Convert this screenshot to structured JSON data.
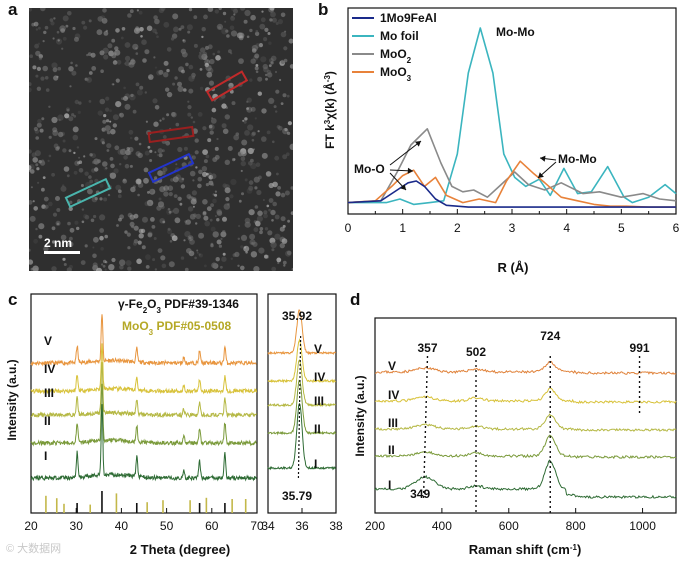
{
  "panels": {
    "a": "a",
    "b": "b",
    "c": "c",
    "d": "d"
  },
  "colors": {
    "b_1Mo9FeAl": "#1a2a8a",
    "b_mofoil": "#3bb5bf",
    "b_moo2": "#8a8a8a",
    "b_moo3": "#e8823a",
    "c_V": "#e8953e",
    "c_IV": "#d8c23a",
    "c_III": "#b5b844",
    "c_II": "#7a9a3a",
    "c_I": "#2e6b34",
    "c_ref_fe2o3": "#111111",
    "c_ref_moo3": "#c3b84a",
    "c_legend_moo3": "#b5a826",
    "d_V": "#e0823a",
    "d_IV": "#d8c23a",
    "d_III": "#b5b844",
    "d_II": "#7a9a3a",
    "d_I": "#2e6b34"
  },
  "panel_a": {
    "scale_label": "2 nm",
    "boxes": [
      {
        "color": "#c02a2a"
      },
      {
        "color": "#9a1f1f"
      },
      {
        "color": "#2233cc"
      },
      {
        "color": "#4ab5ad"
      }
    ]
  },
  "chart_data": [
    {
      "id": "b",
      "type": "line",
      "title": "",
      "xlabel": "R (Å)",
      "ylabel": "FT k3χ(k) (Å-3)",
      "xlim": [
        0,
        6
      ],
      "xticks": [
        "0",
        "1",
        "2",
        "3",
        "4",
        "5",
        "6"
      ],
      "legend": [
        "1Mo9FeAl",
        "Mo foil",
        "MoO2",
        "MoO3"
      ],
      "annotations": [
        "Mo-Mo",
        "Mo-O",
        "Mo-Mo"
      ],
      "series": [
        {
          "name": "1Mo9FeAl",
          "x": [
            0,
            0.6,
            0.9,
            1.1,
            1.25,
            1.4,
            1.6,
            1.8,
            2.2,
            3,
            4,
            5,
            6
          ],
          "y": [
            0.03,
            0.04,
            0.1,
            0.14,
            0.15,
            0.12,
            0.05,
            0.015,
            0.005,
            0.005,
            0.005,
            0.005,
            0.005
          ]
        },
        {
          "name": "Mo foil",
          "x": [
            0,
            0.7,
            0.95,
            1.2,
            1.5,
            1.75,
            2.0,
            2.2,
            2.42,
            2.65,
            2.85,
            3.05,
            3.25,
            3.5,
            3.7,
            3.95,
            4.2,
            4.45,
            4.75,
            5.05,
            5.2,
            5.5,
            5.8,
            6.0
          ],
          "y": [
            0.03,
            0.03,
            0.05,
            0.02,
            0.03,
            0.04,
            0.3,
            0.75,
            1.0,
            0.75,
            0.3,
            0.17,
            0.12,
            0.16,
            0.07,
            0.22,
            0.08,
            0.09,
            0.23,
            0.06,
            0.03,
            0.06,
            0.13,
            0.08
          ]
        },
        {
          "name": "MoO2",
          "x": [
            0,
            0.6,
            0.9,
            1.15,
            1.45,
            1.7,
            1.9,
            2.1,
            2.3,
            2.55,
            2.8,
            3.05,
            3.3,
            3.6,
            3.9,
            4.3,
            4.6,
            5.0,
            5.4,
            5.7,
            6.0
          ],
          "y": [
            0.03,
            0.04,
            0.2,
            0.35,
            0.44,
            0.25,
            0.12,
            0.09,
            0.1,
            0.06,
            0.13,
            0.2,
            0.13,
            0.1,
            0.14,
            0.08,
            0.09,
            0.06,
            0.08,
            0.05,
            0.04
          ]
        },
        {
          "name": "MoO3",
          "x": [
            0,
            0.5,
            0.8,
            1.0,
            1.2,
            1.4,
            1.6,
            1.8,
            2.1,
            2.4,
            2.7,
            2.9,
            3.15,
            3.4,
            3.6,
            3.9,
            4.2,
            4.5,
            4.8,
            5.1,
            5.5,
            6.0
          ],
          "y": [
            0.03,
            0.04,
            0.12,
            0.18,
            0.21,
            0.12,
            0.17,
            0.07,
            0.03,
            0.05,
            0.03,
            0.15,
            0.26,
            0.19,
            0.14,
            0.06,
            0.04,
            0.02,
            0.01,
            0.01,
            0.005,
            0.005
          ]
        }
      ]
    },
    {
      "id": "c",
      "type": "line",
      "xlabel": "2 Theta (degree)",
      "ylabel": "Intensity (a.u.)",
      "xlim": [
        20,
        70
      ],
      "xticks": [
        "20",
        "30",
        "40",
        "50",
        "60",
        "70"
      ],
      "zoom_xlim": [
        34,
        38
      ],
      "zoom_xticks": [
        "34",
        "36",
        "38"
      ],
      "legend": [
        "γ-Fe2O3 PDF#39-1346",
        "MoO3 PDF#05-0508"
      ],
      "series_labels": [
        "V",
        "IV",
        "III",
        "II",
        "I"
      ],
      "zoom_series_labels": [
        "V",
        "IV",
        "III",
        "II",
        "I"
      ],
      "peaks": [
        30.2,
        35.7,
        43.4,
        53.8,
        57.3,
        62.9
      ],
      "peak_heights": [
        0.35,
        1.0,
        0.28,
        0.12,
        0.25,
        0.35
      ],
      "peak_values": [
        "35.92",
        "35.79"
      ],
      "ref_fe2o3": [
        30.2,
        35.7,
        43.4,
        57.3,
        62.9
      ],
      "ref_moo3": [
        23.3,
        25.7,
        27.3,
        33.1,
        38.9,
        45.7,
        49.2,
        55.2,
        58.8,
        64.5,
        67.5
      ]
    },
    {
      "id": "d",
      "type": "line",
      "xlabel": "Raman shift (cm-1)",
      "ylabel": "Intensity (a.u.)",
      "xlim": [
        200,
        1100
      ],
      "xticks": [
        "200",
        "400",
        "600",
        "800",
        "1000"
      ],
      "series_labels": [
        "V",
        "IV",
        "III",
        "II",
        "I"
      ],
      "peak_labels": [
        "357",
        "502",
        "724",
        "991",
        "349"
      ]
    }
  ],
  "watermark": "© 大数据网"
}
